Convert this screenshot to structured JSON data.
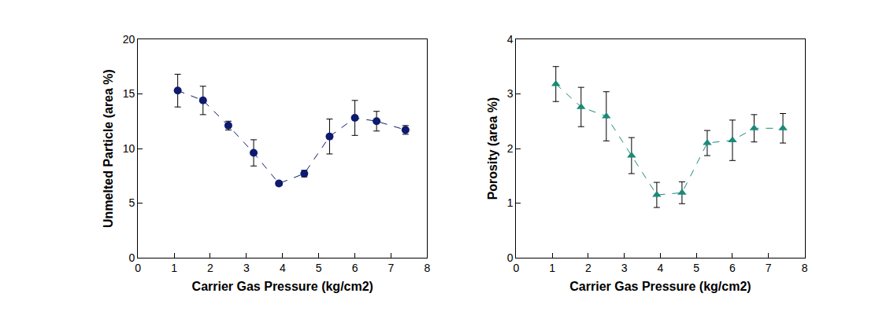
{
  "chart_data": [
    {
      "type": "scatter",
      "x_label": "Carrier Gas Pressure (kg/cm2)",
      "y_label": "Unmelted Particle (area %)",
      "x": [
        1.1,
        1.8,
        2.5,
        3.2,
        3.9,
        4.6,
        5.3,
        6.0,
        6.6,
        7.4
      ],
      "values": [
        15.3,
        14.4,
        12.1,
        9.6,
        6.8,
        7.7,
        11.1,
        12.8,
        12.5,
        11.7
      ],
      "errors": [
        1.5,
        1.3,
        0.4,
        1.2,
        0.2,
        0.3,
        1.6,
        1.6,
        0.9,
        0.4
      ],
      "color": "#0d1a6e",
      "marker": "circle",
      "line_style": "dash",
      "xlim": [
        0,
        8
      ],
      "xticks": [
        0,
        1,
        2,
        3,
        4,
        5,
        6,
        7,
        8
      ],
      "ylim": [
        0,
        20
      ],
      "yticks": [
        0,
        5,
        10,
        15,
        20
      ],
      "grid": false
    },
    {
      "type": "scatter",
      "x_label": "Carrier Gas Pressure (kg/cm2)",
      "y_label": "Porosity (area %)",
      "x": [
        1.1,
        1.8,
        2.5,
        3.2,
        3.9,
        4.6,
        5.3,
        6.0,
        6.6,
        7.4
      ],
      "values": [
        3.18,
        2.76,
        2.59,
        1.87,
        1.15,
        1.19,
        2.1,
        2.15,
        2.37,
        2.37
      ],
      "errors": [
        0.32,
        0.36,
        0.45,
        0.33,
        0.23,
        0.2,
        0.23,
        0.37,
        0.25,
        0.27
      ],
      "color": "#1a8a7a",
      "marker": "triangle",
      "line_style": "dash",
      "xlim": [
        0,
        8
      ],
      "xticks": [
        0,
        1,
        2,
        3,
        4,
        5,
        6,
        7,
        8
      ],
      "ylim": [
        0,
        4
      ],
      "yticks": [
        0,
        1,
        2,
        3,
        4
      ],
      "grid": false
    }
  ]
}
